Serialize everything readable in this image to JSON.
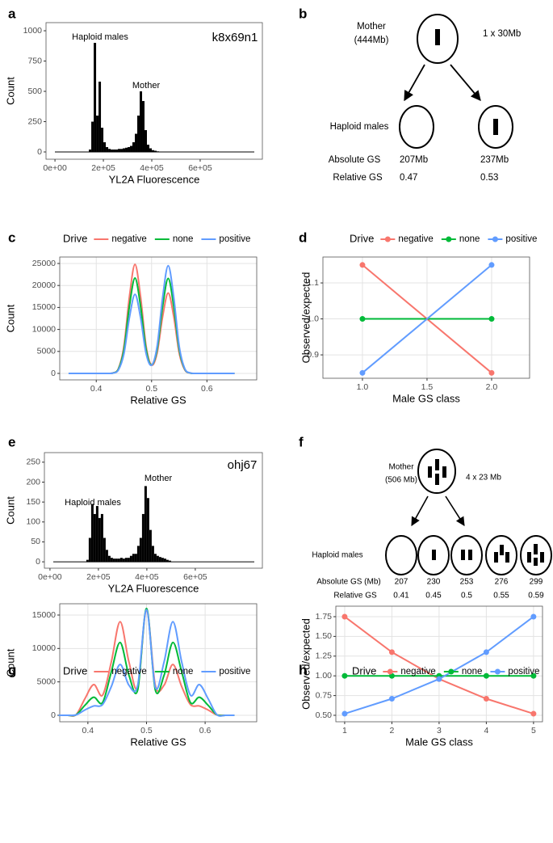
{
  "chart_data": [
    {
      "panel": "a",
      "type": "histogram",
      "xlabel": "YL2A Fluorescence",
      "ylabel": "Count",
      "color": "#000000",
      "bins": [
        140000,
        150000,
        160000,
        170000,
        180000,
        190000,
        200000,
        210000,
        220000,
        230000,
        240000,
        250000,
        260000,
        270000,
        280000,
        290000,
        300000,
        310000,
        320000,
        330000,
        340000,
        350000,
        360000,
        370000,
        380000,
        390000,
        400000,
        410000,
        420000,
        430000,
        440000,
        450000,
        460000
      ],
      "values": [
        20,
        250,
        900,
        300,
        580,
        200,
        80,
        40,
        25,
        20,
        20,
        20,
        25,
        25,
        30,
        35,
        40,
        50,
        80,
        150,
        300,
        500,
        420,
        180,
        60,
        30,
        15,
        10,
        5,
        3,
        2,
        1
      ],
      "xlim": [
        -37000,
        857000
      ],
      "ylim": [
        -60,
        1067
      ],
      "xticks": [
        {
          "value": 0,
          "label": "0e+00"
        },
        {
          "value": 200000,
          "label": "2e+05"
        },
        {
          "value": 400000,
          "label": "4e+05"
        },
        {
          "value": 600000,
          "label": "6e+05"
        }
      ],
      "yticks": [
        0,
        250,
        500,
        750,
        1000
      ],
      "grid": false,
      "annotations": [
        "k8x69n1",
        "Haploid males",
        "Mother"
      ]
    },
    {
      "panel": "c",
      "type": "line",
      "xlabel": "Relative GS",
      "ylabel": "Count",
      "legend_title": "Drive",
      "legend": "top",
      "markers": false,
      "x": [
        0.35,
        0.36,
        0.37,
        0.38,
        0.39,
        0.4,
        0.41,
        0.42,
        0.43,
        0.44,
        0.45,
        0.46,
        0.47,
        0.48,
        0.49,
        0.5,
        0.51,
        0.52,
        0.53,
        0.54,
        0.55,
        0.56,
        0.57,
        0.58,
        0.59,
        0.6,
        0.61,
        0.62,
        0.63,
        0.64,
        0.65
      ],
      "series": [
        {
          "name": "negative",
          "color": "#F8766D",
          "values": [
            0,
            0,
            0,
            0,
            0,
            0,
            0,
            0,
            100,
            1090,
            6180,
            17530,
            24800,
            17530,
            6250,
            1900,
            4660,
            12940,
            18300,
            12940,
            4560,
            800,
            70,
            0,
            0,
            0,
            0,
            0,
            0,
            0,
            0
          ]
        },
        {
          "name": "none",
          "color": "#00BA38",
          "values": [
            0,
            0,
            0,
            0,
            0,
            0,
            0,
            0,
            90,
            950,
            5400,
            15340,
            21700,
            15340,
            5490,
            1900,
            5470,
            15270,
            21600,
            15270,
            5380,
            950,
            90,
            0,
            0,
            0,
            0,
            0,
            0,
            0,
            0
          ]
        },
        {
          "name": "positive",
          "color": "#619CFF",
          "values": [
            0,
            0,
            0,
            0,
            0,
            0,
            0,
            0,
            70,
            790,
            4480,
            12730,
            18000,
            12730,
            4580,
            1870,
            6170,
            17320,
            24500,
            17320,
            6100,
            1080,
            100,
            0,
            0,
            0,
            0,
            0,
            0,
            0,
            0
          ]
        }
      ],
      "xlim": [
        0.334,
        0.69
      ],
      "ylim": [
        -1470,
        26470
      ],
      "xticks": [
        0.4,
        0.5,
        0.6
      ],
      "yticks": [
        0,
        5000,
        10000,
        15000,
        20000,
        25000
      ],
      "grid": true
    },
    {
      "panel": "d",
      "type": "line",
      "xlabel": "Male GS class",
      "ylabel": "Observed/expected",
      "legend_title": "Drive",
      "legend": "top",
      "markers": true,
      "x": [
        1,
        2
      ],
      "series": [
        {
          "name": "negative",
          "color": "#F8766D",
          "values": [
            1.15,
            0.85
          ]
        },
        {
          "name": "none",
          "color": "#00BA38",
          "values": [
            1.0,
            1.0
          ]
        },
        {
          "name": "positive",
          "color": "#619CFF",
          "values": [
            0.85,
            1.15
          ]
        }
      ],
      "xlim": [
        0.694,
        2.294
      ],
      "ylim": [
        0.835,
        1.172
      ],
      "xticks": [
        {
          "value": 1,
          "label": "1.0"
        },
        1.5,
        {
          "value": 2,
          "label": "2.0"
        }
      ],
      "yticks": [
        0.9,
        {
          "value": 1,
          "label": "1.0"
        },
        1.1
      ],
      "grid": true
    },
    {
      "panel": "e",
      "type": "histogram",
      "xlabel": "YL2A Fluorescence",
      "ylabel": "Count",
      "color": "#000000",
      "bins": [
        150000,
        160000,
        170000,
        180000,
        190000,
        200000,
        210000,
        220000,
        230000,
        240000,
        250000,
        260000,
        270000,
        280000,
        290000,
        300000,
        310000,
        320000,
        330000,
        340000,
        350000,
        360000,
        370000,
        380000,
        390000,
        400000,
        410000,
        420000,
        430000,
        440000,
        450000,
        460000,
        470000,
        480000,
        490000,
        500000
      ],
      "values": [
        5,
        60,
        145,
        120,
        140,
        110,
        120,
        60,
        30,
        15,
        10,
        8,
        8,
        8,
        10,
        8,
        10,
        10,
        15,
        20,
        20,
        40,
        60,
        120,
        190,
        160,
        80,
        40,
        20,
        15,
        12,
        10,
        8,
        5,
        3
      ],
      "xlim": [
        -23000,
        877000
      ],
      "ylim": [
        -16,
        274
      ],
      "xticks": [
        {
          "value": 0,
          "label": "0e+00"
        },
        {
          "value": 200000,
          "label": "2e+05"
        },
        {
          "value": 400000,
          "label": "4e+05"
        },
        {
          "value": 600000,
          "label": "6e+05"
        }
      ],
      "yticks": [
        0,
        50,
        100,
        150,
        200,
        250
      ],
      "grid": false,
      "annotations": [
        "ohj67",
        "Haploid males",
        "Mother"
      ]
    },
    {
      "panel": "g",
      "type": "line",
      "xlabel": "Relative GS",
      "ylabel": "Count",
      "legend_title": "Drive",
      "legend": "top",
      "markers": false,
      "x": [
        0.35,
        0.365,
        0.38,
        0.395,
        0.41,
        0.425,
        0.44,
        0.455,
        0.47,
        0.485,
        0.5,
        0.515,
        0.53,
        0.545,
        0.56,
        0.575,
        0.59,
        0.605,
        0.62,
        0.635,
        0.65
      ],
      "series": [
        {
          "name": "negative",
          "color": "#F8766D",
          "values": [
            0,
            0,
            100,
            2500,
            4600,
            3000,
            8000,
            14000,
            8000,
            4200,
            15800,
            4500,
            4500,
            7600,
            4300,
            1600,
            1400,
            800,
            60,
            0,
            0
          ]
        },
        {
          "name": "none",
          "color": "#00BA38",
          "values": [
            0,
            0,
            80,
            1500,
            2700,
            1900,
            6500,
            10900,
            6000,
            3800,
            16000,
            3800,
            6000,
            10900,
            6500,
            1900,
            2700,
            1500,
            80,
            0,
            0
          ]
        },
        {
          "name": "positive",
          "color": "#619CFF",
          "values": [
            0,
            0,
            60,
            800,
            1400,
            1600,
            4300,
            7600,
            4500,
            4500,
            15800,
            4200,
            8000,
            14000,
            8000,
            3000,
            4600,
            2500,
            100,
            0,
            0
          ]
        }
      ],
      "xlim": [
        0.352,
        0.688
      ],
      "ylim": [
        -968,
        16690
      ],
      "xticks": [
        0.4,
        0.5,
        0.6
      ],
      "yticks": [
        0,
        5000,
        10000,
        15000
      ],
      "grid": true
    },
    {
      "panel": "h",
      "type": "line",
      "xlabel": "Male GS class",
      "ylabel": "Observed/expected",
      "legend_title": "Drive",
      "legend": "top",
      "markers": true,
      "x": [
        1,
        2,
        3,
        4,
        5
      ],
      "series": [
        {
          "name": "negative",
          "color": "#F8766D",
          "values": [
            1.75,
            1.3,
            0.96,
            0.71,
            0.52
          ]
        },
        {
          "name": "none",
          "color": "#00BA38",
          "values": [
            1.0,
            1.0,
            1.0,
            1.0,
            1.0
          ]
        },
        {
          "name": "positive",
          "color": "#619CFF",
          "values": [
            0.52,
            0.71,
            0.96,
            1.3,
            1.75
          ]
        }
      ],
      "xlim": [
        0.813,
        5.19
      ],
      "ylim": [
        0.418,
        1.883
      ],
      "xticks": [
        1,
        2,
        3,
        4,
        5
      ],
      "yticks": [
        {
          "value": 0.5,
          "label": "0.50"
        },
        0.75,
        {
          "value": 1,
          "label": "1.00"
        },
        1.25,
        {
          "value": 1.5,
          "label": "1.50"
        },
        1.75
      ],
      "grid": true
    }
  ],
  "diagrams": [
    {
      "panel": "b",
      "mother": "Mother",
      "mother_size": "(444Mb)",
      "insertion": "1 x 30Mb",
      "offspring": "Haploid males",
      "rows": [
        {
          "label": "Absolute GS",
          "values": [
            "207Mb",
            "237Mb"
          ]
        },
        {
          "label": "Relative GS",
          "values": [
            0.47,
            0.53
          ]
        }
      ]
    },
    {
      "panel": "f",
      "mother": "Mother",
      "mother_size": "(506 Mb)",
      "insertion": "4 x 23 Mb",
      "offspring": "Haploid males",
      "rows": [
        {
          "label": "Absolute GS (Mb)",
          "values": [
            207,
            230,
            253,
            276,
            299
          ]
        },
        {
          "label": "Relative GS",
          "values": [
            0.41,
            0.45,
            0.5,
            0.55,
            0.59
          ]
        }
      ]
    }
  ]
}
